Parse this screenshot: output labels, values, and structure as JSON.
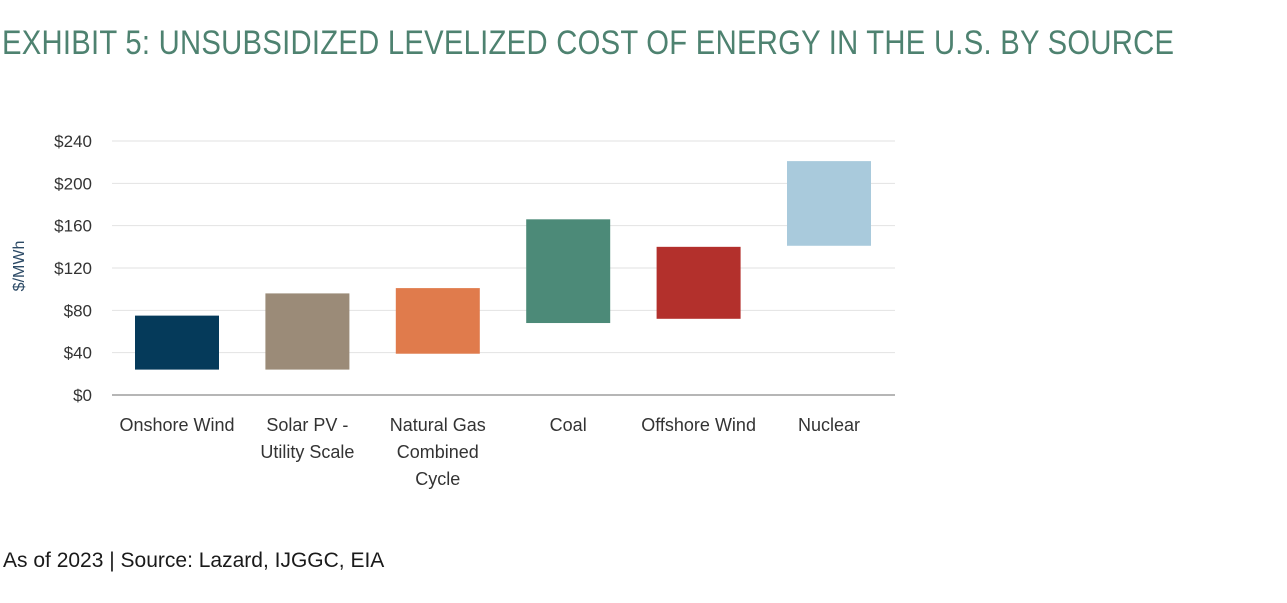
{
  "title": "EXHIBIT 5: UNSUBSIDIZED LEVELIZED COST OF ENERGY IN THE U.S. BY SOURCE",
  "footnote": "As of 2023 | Source: Lazard, IJGGC, EIA",
  "chart_data": {
    "type": "bar",
    "subtype": "floating-range",
    "ylabel": "$/MWh",
    "ylim": [
      0,
      240
    ],
    "yticks": [
      0,
      40,
      80,
      120,
      160,
      200,
      240
    ],
    "ytick_labels": [
      "$0",
      "$40",
      "$80",
      "$120",
      "$160",
      "$200",
      "$240"
    ],
    "grid": true,
    "categories": [
      [
        "Onshore Wind"
      ],
      [
        "Solar PV -",
        "Utility Scale"
      ],
      [
        "Natural Gas",
        "Combined",
        "Cycle"
      ],
      [
        "Coal"
      ],
      [
        "Offshore Wind"
      ],
      [
        "Nuclear"
      ]
    ],
    "ranges": [
      {
        "low": 24,
        "high": 75
      },
      {
        "low": 24,
        "high": 96
      },
      {
        "low": 39,
        "high": 101
      },
      {
        "low": 68,
        "high": 166
      },
      {
        "low": 72,
        "high": 140
      },
      {
        "low": 141,
        "high": 221
      }
    ],
    "colors": [
      "#053a5a",
      "#9b8b78",
      "#e07b4c",
      "#4c8a78",
      "#b3302c",
      "#a9cadc"
    ]
  }
}
